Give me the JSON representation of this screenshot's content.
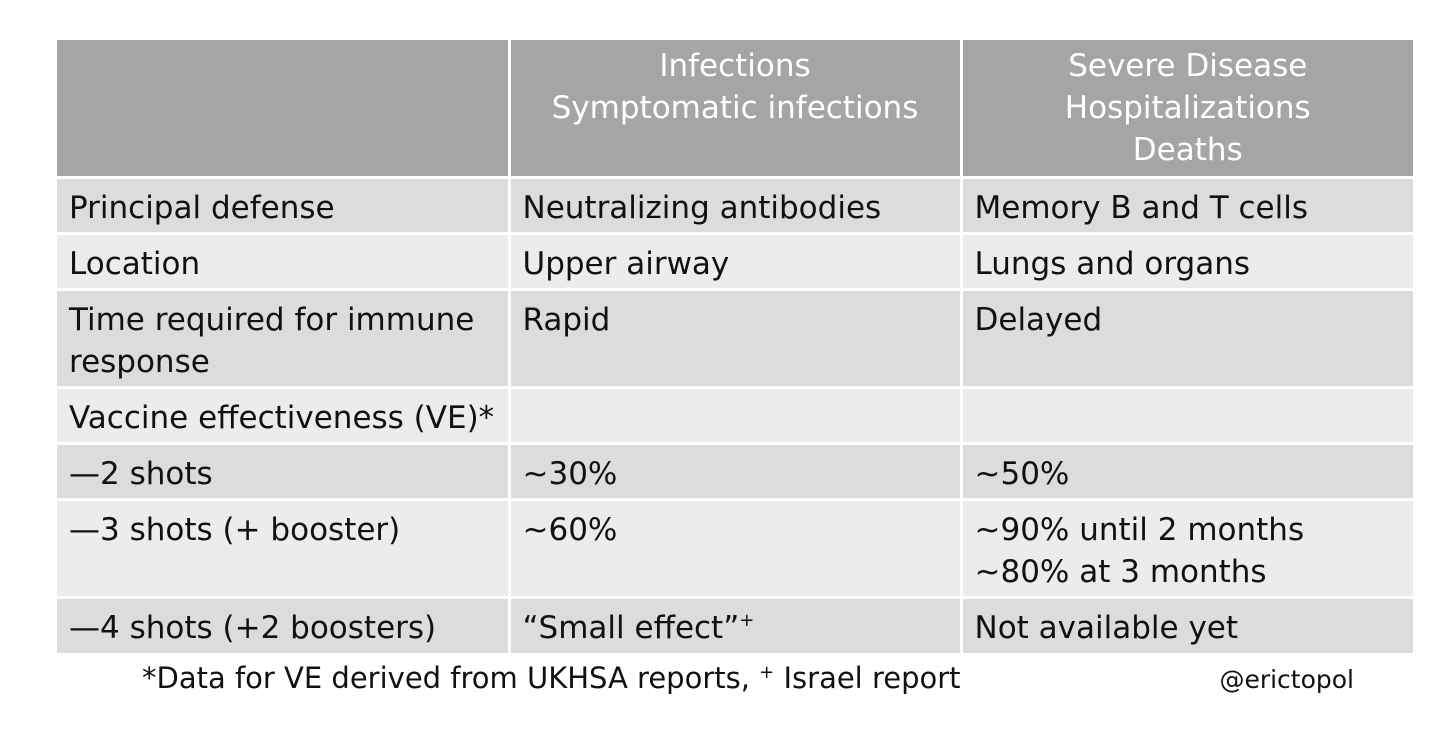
{
  "table": {
    "header": [
      "",
      "Infections\nSymptomatic infections",
      "Severe Disease\nHospitalizations\nDeaths"
    ],
    "rows": [
      {
        "label": "Principal defense",
        "infections": "Neutralizing antibodies",
        "severe": "Memory B and T cells"
      },
      {
        "label": "Location",
        "infections": "Upper airway",
        "severe": "Lungs and organs"
      },
      {
        "label": "Time required for immune response",
        "infections": "Rapid",
        "severe": "Delayed"
      },
      {
        "label": "Vaccine effectiveness (VE)*",
        "infections": "",
        "severe": ""
      },
      {
        "label": "—2 shots",
        "infections": "~30%",
        "severe": "~50%"
      },
      {
        "label": "—3 shots (+ booster)",
        "infections": "~60%",
        "severe": "~90% until 2 months\n~80% at 3 months"
      },
      {
        "label": "—4 shots (+2 boosters)",
        "infections": "“Small effect”",
        "severe": "Not available yet"
      }
    ]
  },
  "footnote": {
    "text_before": "*Data for VE derived from UKHSA reports, ",
    "plus_mark": "+",
    "text_after": " Israel report"
  },
  "source_handle": "@erictopol",
  "colors": {
    "header_bg": "#a5a5a5",
    "row_dark": "#dcdcdc",
    "row_light": "#ececec"
  }
}
